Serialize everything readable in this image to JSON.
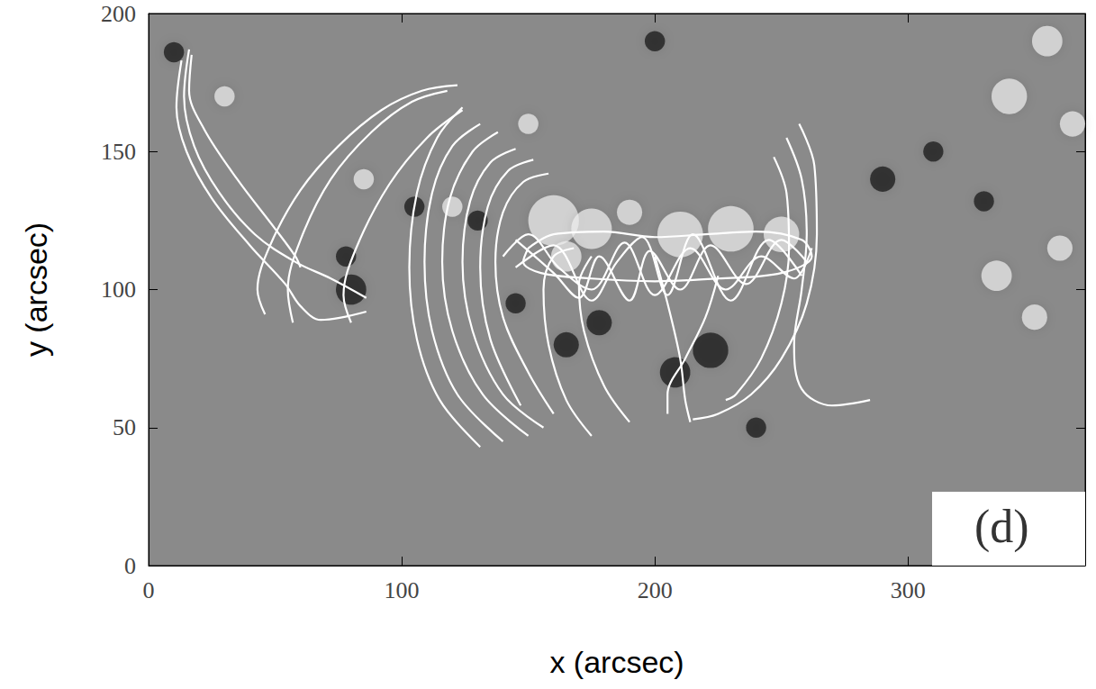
{
  "chart_data": {
    "type": "line",
    "x_label": "x (arcsec)",
    "y_label": "y (arcsec)",
    "annotation": "(d)",
    "color": "#8a8a8a",
    "grid": false,
    "xlim": [
      0,
      370
    ],
    "ylim": [
      0,
      200
    ],
    "xticks": [
      0,
      100,
      200,
      300
    ],
    "yticks": [
      0,
      50,
      100,
      150,
      200
    ],
    "series": [
      {
        "type": "scatter",
        "marker": "circle",
        "x": [
          160,
          175,
          165,
          210,
          230,
          250,
          190,
          30,
          85,
          120,
          150,
          340,
          355,
          365,
          335,
          350,
          360,
          80,
          78,
          222,
          208,
          178,
          165,
          145,
          290,
          310,
          330,
          10,
          240,
          200,
          130,
          105
        ],
        "values": [
          125,
          122,
          112,
          120,
          122,
          120,
          128,
          170,
          140,
          130,
          160,
          170,
          190,
          160,
          105,
          90,
          115,
          100,
          112,
          78,
          70,
          88,
          80,
          95,
          140,
          150,
          132,
          186,
          50,
          190,
          125,
          130
        ],
        "sizes": [
          20,
          16,
          12,
          18,
          18,
          14,
          10,
          8,
          8,
          8,
          8,
          14,
          12,
          10,
          12,
          10,
          10,
          12,
          8,
          14,
          12,
          10,
          10,
          8,
          10,
          8,
          8,
          8,
          8,
          8,
          8,
          8
        ],
        "colors": [
          "#f0f0f0",
          "#f0f0f0",
          "#f0f0f0",
          "#f0f0f0",
          "#f0f0f0",
          "#f0f0f0",
          "#f0f0f0",
          "#f0f0f0",
          "#f0f0f0",
          "#f0f0f0",
          "#f0f0f0",
          "#f0f0f0",
          "#f0f0f0",
          "#f0f0f0",
          "#f0f0f0",
          "#f0f0f0",
          "#f0f0f0",
          "#151515",
          "#151515",
          "#151515",
          "#151515",
          "#151515",
          "#151515",
          "#151515",
          "#151515",
          "#151515",
          "#151515",
          "#151515",
          "#151515",
          "#151515",
          "#151515",
          "#151515"
        ]
      },
      {
        "type": "line",
        "color": "#ffffff",
        "x": [
          16,
          14,
          18,
          28,
          42,
          58,
          72,
          86
        ],
        "values": [
          187,
          170,
          152,
          135,
          120,
          110,
          104,
          97
        ]
      },
      {
        "type": "line",
        "color": "#ffffff",
        "x": [
          13,
          11,
          15,
          25,
          40,
          54,
          60,
          68,
          86
        ],
        "values": [
          183,
          166,
          150,
          133,
          116,
          102,
          94,
          89,
          92
        ]
      },
      {
        "type": "line",
        "color": "#ffffff",
        "x": [
          17,
          16,
          22,
          35,
          50,
          58,
          60
        ],
        "values": [
          185,
          172,
          158,
          140,
          122,
          112,
          108
        ]
      },
      {
        "type": "line",
        "color": "#ffffff",
        "x": [
          46,
          43,
          48,
          60,
          75,
          92,
          108,
          122
        ],
        "values": [
          91,
          100,
          116,
          136,
          152,
          165,
          172,
          174
        ]
      },
      {
        "type": "line",
        "color": "#ffffff",
        "x": [
          57,
          55,
          60,
          72,
          88,
          104,
          118
        ],
        "values": [
          88,
          100,
          118,
          140,
          157,
          168,
          172
        ]
      },
      {
        "type": "line",
        "color": "#ffffff",
        "x": [
          80,
          77,
          82,
          95,
          110,
          124
        ],
        "values": [
          88,
          98,
          115,
          138,
          155,
          165
        ]
      },
      {
        "type": "line",
        "color": "#ffffff",
        "x": [
          131,
          115,
          106,
          103,
          106,
          114,
          124
        ],
        "values": [
          43,
          60,
          82,
          108,
          135,
          155,
          166
        ]
      },
      {
        "type": "line",
        "color": "#ffffff",
        "x": [
          140,
          122,
          112,
          109,
          112,
          120,
          131
        ],
        "values": [
          45,
          62,
          85,
          110,
          135,
          152,
          160
        ]
      },
      {
        "type": "line",
        "color": "#ffffff",
        "x": [
          150,
          132,
          120,
          116,
          119,
          128,
          138
        ],
        "values": [
          47,
          62,
          85,
          110,
          133,
          150,
          157
        ]
      },
      {
        "type": "line",
        "color": "#ffffff",
        "x": [
          156,
          140,
          128,
          124,
          127,
          135,
          145
        ],
        "values": [
          50,
          62,
          85,
          110,
          132,
          146,
          151
        ]
      },
      {
        "type": "line",
        "color": "#ffffff",
        "x": [
          147,
          135,
          131,
          134,
          142,
          152
        ],
        "values": [
          58,
          82,
          108,
          130,
          143,
          147
        ]
      },
      {
        "type": "line",
        "color": "#ffffff",
        "x": [
          160,
          150,
          140,
          137,
          140,
          148,
          158
        ],
        "values": [
          55,
          70,
          90,
          110,
          128,
          139,
          142
        ]
      },
      {
        "type": "line",
        "color": "#ffffff",
        "x": [
          175,
          165,
          158,
          156,
          160,
          168
        ],
        "values": [
          47,
          60,
          80,
          100,
          112,
          115
        ]
      },
      {
        "type": "line",
        "color": "#ffffff",
        "x": [
          190,
          180,
          172,
          170,
          175
        ],
        "values": [
          52,
          65,
          85,
          102,
          112
        ]
      },
      {
        "type": "line",
        "color": "#ffffff",
        "x": [
          200,
          205,
          210,
          212,
          214
        ],
        "values": [
          112,
          95,
          75,
          60,
          52
        ]
      },
      {
        "type": "line",
        "color": "#ffffff",
        "x": [
          225,
          220,
          212,
          205,
          205
        ],
        "values": [
          105,
          90,
          75,
          62,
          55
        ]
      },
      {
        "type": "line",
        "color": "#ffffff",
        "x": [
          257,
          263,
          264,
          260,
          250,
          238,
          225,
          215
        ],
        "values": [
          160,
          145,
          120,
          95,
          75,
          62,
          55,
          53
        ]
      },
      {
        "type": "line",
        "color": "#ffffff",
        "x": [
          252,
          258,
          260,
          258,
          255,
          258,
          270,
          285
        ],
        "values": [
          155,
          140,
          120,
          100,
          80,
          64,
          58,
          60
        ]
      },
      {
        "type": "line",
        "color": "#ffffff",
        "x": [
          247,
          252,
          253,
          250,
          242,
          232,
          228
        ],
        "values": [
          148,
          135,
          115,
          95,
          75,
          62,
          60
        ]
      },
      {
        "type": "line",
        "color": "#ffffff",
        "x": [
          140,
          150,
          162,
          175,
          188,
          200,
          214,
          228,
          242,
          255,
          262
        ],
        "values": [
          112,
          120,
          108,
          100,
          117,
          98,
          115,
          100,
          112,
          104,
          115
        ]
      },
      {
        "type": "line",
        "color": "#ffffff",
        "x": [
          145,
          160,
          170,
          178,
          190,
          198,
          210,
          222,
          236,
          250,
          260
        ],
        "values": [
          118,
          106,
          97,
          112,
          96,
          114,
          100,
          116,
          102,
          118,
          110
        ]
      },
      {
        "type": "line",
        "color": "#ffffff",
        "x": [
          150,
          160,
          180,
          200,
          220,
          240,
          258,
          262,
          250,
          225,
          200,
          175,
          155,
          148,
          150
        ],
        "values": [
          115,
          120,
          121,
          119,
          120,
          121,
          118,
          112,
          106,
          104,
          103,
          104,
          106,
          110,
          115
        ]
      },
      {
        "type": "line",
        "color": "#ffffff",
        "x": [
          145,
          160,
          175,
          185,
          195,
          205,
          215,
          230,
          245,
          258
        ],
        "values": [
          108,
          116,
          96,
          110,
          119,
          98,
          120,
          96,
          118,
          105
        ]
      }
    ]
  }
}
